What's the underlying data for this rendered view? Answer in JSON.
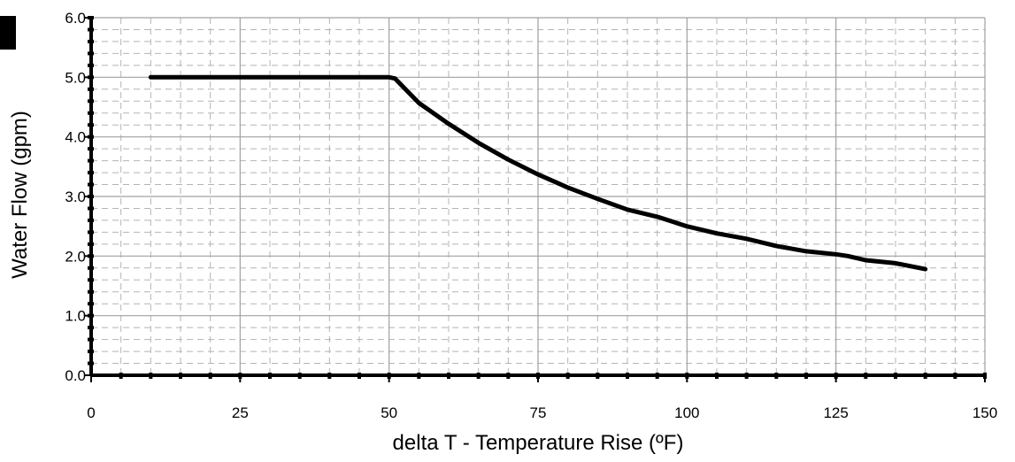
{
  "chart_data": {
    "type": "line",
    "title": "",
    "xlabel": "delta T - Temperature Rise (ºF)",
    "ylabel": "Water Flow (gpm)",
    "xlim": [
      0,
      150
    ],
    "ylim": [
      0,
      6
    ],
    "xticks": [
      "0",
      "25",
      "50",
      "75",
      "100",
      "125",
      "150"
    ],
    "yticks": [
      "0.0",
      "1.0",
      "2.0",
      "3.0",
      "4.0",
      "5.0",
      "6.0"
    ],
    "grid": true,
    "minor_grid": true,
    "legend": "none",
    "colors": {
      "line": "#000000",
      "major_grid": "#a0a0a0",
      "minor_grid": "#b4b4b4",
      "axis": "#000000"
    },
    "series": [
      {
        "x": [
          10,
          50,
          51,
          55,
          60,
          65,
          70,
          75,
          80,
          85,
          90,
          95,
          100,
          105,
          110,
          115,
          120,
          125,
          127,
          130,
          135,
          140
        ],
        "y": [
          5.0,
          5.0,
          4.98,
          4.57,
          4.22,
          3.9,
          3.62,
          3.37,
          3.15,
          2.96,
          2.78,
          2.66,
          2.5,
          2.38,
          2.29,
          2.17,
          2.08,
          2.03,
          2.0,
          1.93,
          1.88,
          1.78
        ]
      }
    ]
  }
}
